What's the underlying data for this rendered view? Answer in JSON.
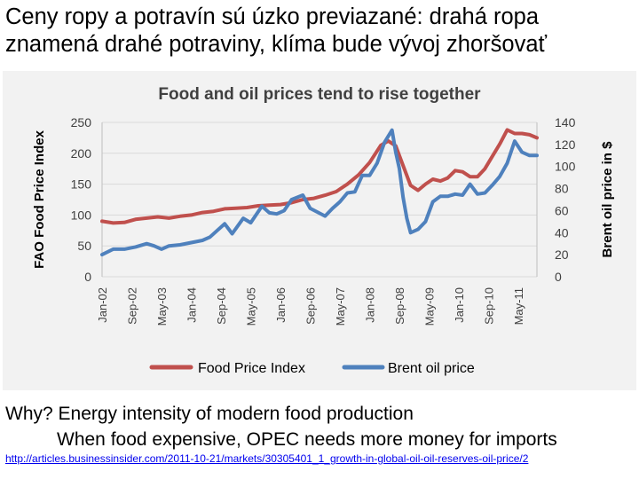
{
  "slide": {
    "title": "Ceny ropy a potravín sú úzko previazané: drahá ropa znamená drahé potraviny, klíma bude vývoj zhoršovať"
  },
  "explanation": {
    "line1": "Why? Energy intensity of modern food production",
    "line2": "When food expensive, OPEC needs more money for imports"
  },
  "source": {
    "link_text": "http://articles.businessinsider.com/2011-10-21/markets/30305401_1_growth-in-global-oil-oil-reserves-oil-price/2"
  },
  "chart_data": {
    "type": "line",
    "title": "Food and oil prices tend to rise together",
    "xlabel": "",
    "ylabel": "FAO Food Price Index",
    "y2label": "Brent oil  price in $",
    "ylim": [
      0,
      250
    ],
    "y2lim": [
      0,
      140
    ],
    "yticks": [
      0,
      50,
      100,
      150,
      200,
      250
    ],
    "y2ticks": [
      0,
      20,
      40,
      60,
      80,
      100,
      120,
      140
    ],
    "xticks": [
      "Jan-02",
      "Sep-02",
      "May-03",
      "Jan-04",
      "Sep-04",
      "May-05",
      "Jan-06",
      "Sep-06",
      "May-07",
      "Jan-08",
      "Sep-08",
      "May-09",
      "Jan-10",
      "Sep-10",
      "May-11"
    ],
    "x_start": "Jan-02",
    "x_end": "Oct-11",
    "grid": true,
    "legend_position": "bottom",
    "colors": {
      "food": "#c0504d",
      "oil": "#4f81bd",
      "grid": "#d9d9d9",
      "panel": "#f2f2f2"
    },
    "series": [
      {
        "name": "Food Price Index",
        "axis": "left",
        "points": [
          [
            "Jan-02",
            90
          ],
          [
            "Apr-02",
            87
          ],
          [
            "Jul-02",
            88
          ],
          [
            "Oct-02",
            93
          ],
          [
            "Jan-03",
            95
          ],
          [
            "Apr-03",
            97
          ],
          [
            "Jul-03",
            95
          ],
          [
            "Oct-03",
            98
          ],
          [
            "Jan-04",
            100
          ],
          [
            "Apr-04",
            104
          ],
          [
            "Jul-04",
            106
          ],
          [
            "Oct-04",
            110
          ],
          [
            "Jan-05",
            111
          ],
          [
            "Apr-05",
            112
          ],
          [
            "Jul-05",
            115
          ],
          [
            "Oct-05",
            116
          ],
          [
            "Jan-06",
            117
          ],
          [
            "Apr-06",
            120
          ],
          [
            "Jul-06",
            125
          ],
          [
            "Oct-06",
            127
          ],
          [
            "Jan-07",
            132
          ],
          [
            "Apr-07",
            138
          ],
          [
            "Jul-07",
            150
          ],
          [
            "Oct-07",
            165
          ],
          [
            "Jan-08",
            185
          ],
          [
            "Apr-08",
            213
          ],
          [
            "Jun-08",
            220
          ],
          [
            "Aug-08",
            212
          ],
          [
            "Oct-08",
            180
          ],
          [
            "Dec-08",
            148
          ],
          [
            "Feb-09",
            140
          ],
          [
            "Apr-09",
            150
          ],
          [
            "Jun-09",
            158
          ],
          [
            "Aug-09",
            155
          ],
          [
            "Oct-09",
            160
          ],
          [
            "Dec-09",
            172
          ],
          [
            "Feb-10",
            170
          ],
          [
            "Apr-10",
            162
          ],
          [
            "Jun-10",
            162
          ],
          [
            "Aug-10",
            175
          ],
          [
            "Oct-10",
            195
          ],
          [
            "Dec-10",
            215
          ],
          [
            "Feb-11",
            238
          ],
          [
            "Apr-11",
            232
          ],
          [
            "Jun-11",
            232
          ],
          [
            "Aug-11",
            230
          ],
          [
            "Oct-11",
            225
          ]
        ]
      },
      {
        "name": "Brent oil price",
        "axis": "right",
        "points": [
          [
            "Jan-02",
            20
          ],
          [
            "Apr-02",
            25
          ],
          [
            "Jul-02",
            25
          ],
          [
            "Oct-02",
            27
          ],
          [
            "Jan-03",
            30
          ],
          [
            "Mar-03",
            28
          ],
          [
            "May-03",
            25
          ],
          [
            "Jul-03",
            28
          ],
          [
            "Oct-03",
            29
          ],
          [
            "Jan-04",
            31
          ],
          [
            "Apr-04",
            33
          ],
          [
            "Jun-04",
            36
          ],
          [
            "Aug-04",
            42
          ],
          [
            "Oct-04",
            48
          ],
          [
            "Dec-04",
            39
          ],
          [
            "Mar-05",
            53
          ],
          [
            "May-05",
            49
          ],
          [
            "Aug-05",
            64
          ],
          [
            "Oct-05",
            58
          ],
          [
            "Dec-05",
            57
          ],
          [
            "Feb-06",
            60
          ],
          [
            "Apr-06",
            70
          ],
          [
            "Jul-06",
            74
          ],
          [
            "Sep-06",
            62
          ],
          [
            "Jan-07",
            55
          ],
          [
            "Mar-07",
            62
          ],
          [
            "May-07",
            68
          ],
          [
            "Jul-07",
            76
          ],
          [
            "Sep-07",
            77
          ],
          [
            "Nov-07",
            92
          ],
          [
            "Jan-08",
            92
          ],
          [
            "Mar-08",
            103
          ],
          [
            "May-08",
            122
          ],
          [
            "Jul-08",
            133
          ],
          [
            "Aug-08",
            113
          ],
          [
            "Sep-08",
            98
          ],
          [
            "Oct-08",
            72
          ],
          [
            "Nov-08",
            53
          ],
          [
            "Dec-08",
            40
          ],
          [
            "Feb-09",
            43
          ],
          [
            "Apr-09",
            50
          ],
          [
            "Jun-09",
            68
          ],
          [
            "Aug-09",
            73
          ],
          [
            "Oct-09",
            73
          ],
          [
            "Dec-09",
            75
          ],
          [
            "Feb-10",
            74
          ],
          [
            "Apr-10",
            84
          ],
          [
            "Jun-10",
            75
          ],
          [
            "Aug-10",
            76
          ],
          [
            "Oct-10",
            83
          ],
          [
            "Dec-10",
            91
          ],
          [
            "Feb-11",
            103
          ],
          [
            "Apr-11",
            123
          ],
          [
            "Jun-11",
            113
          ],
          [
            "Aug-11",
            110
          ],
          [
            "Oct-11",
            110
          ]
        ]
      }
    ]
  }
}
